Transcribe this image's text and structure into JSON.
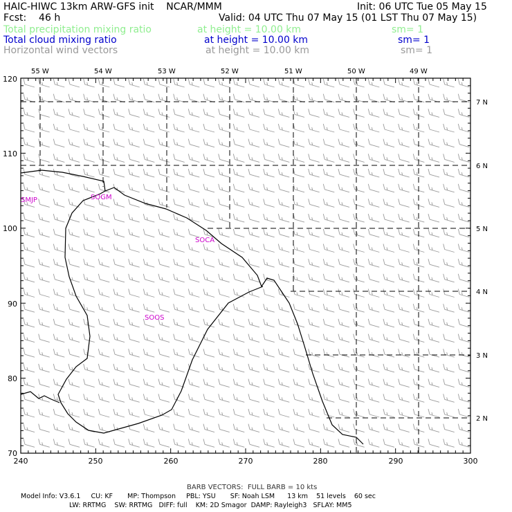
{
  "header": {
    "line1_left": "HAIC-HIWC 13km ARW-GFS init    NCAR/MMM",
    "line1_right": "Init: 06 UTC Tue 05 May 15",
    "line2_left": "Fcst:    46 h",
    "line2_right": "Valid: 04 UTC Thu 07 May 15 (01 LST Thu 07 May 15)",
    "fields": [
      {
        "name": "Total precipitation mixing ratio",
        "height": "at height = 10.00 km",
        "sm": "sm= 1",
        "color": "#90ee90"
      },
      {
        "name": "Total cloud mixing ratio",
        "height": "at height = 10.00 km",
        "sm": "sm= 1",
        "color": "#0000cc"
      },
      {
        "name": "Horizontal wind vectors",
        "height": "at height = 10.00 km",
        "sm": "sm= 1",
        "color": "#999999"
      }
    ]
  },
  "axes": {
    "x_ticks": [
      "240",
      "250",
      "260",
      "270",
      "280",
      "290",
      "300"
    ],
    "y_ticks": [
      "70",
      "80",
      "90",
      "100",
      "110",
      "120"
    ],
    "lon_labels": [
      "55 W",
      "54 W",
      "53 W",
      "52 W",
      "51 W",
      "50 W",
      "49 W"
    ],
    "lat_labels": [
      "7 N",
      "6 N",
      "5 N",
      "4 N",
      "3 N",
      "2 N"
    ]
  },
  "stations": [
    {
      "id": "SMJP",
      "color": "#cc00cc"
    },
    {
      "id": "SOGM",
      "color": "#cc00cc"
    },
    {
      "id": "SOCA",
      "color": "#cc00cc"
    },
    {
      "id": "SOOS",
      "color": "#cc00cc"
    }
  ],
  "footer": {
    "barb_note": "BARB VECTORS:  FULL BARB = 10 kts",
    "model_line1": "Model Info: V3.6.1     CU: KF       MP: Thompson     PBL: YSU       SF: Noah LSM      13 km    51 levels    60 sec",
    "model_line2": "LW: RRTMG    SW: RRTMG   DIFF: full    KM: 2D Smagor  DAMP: Rayleigh3   SFLAY: MM5"
  }
}
